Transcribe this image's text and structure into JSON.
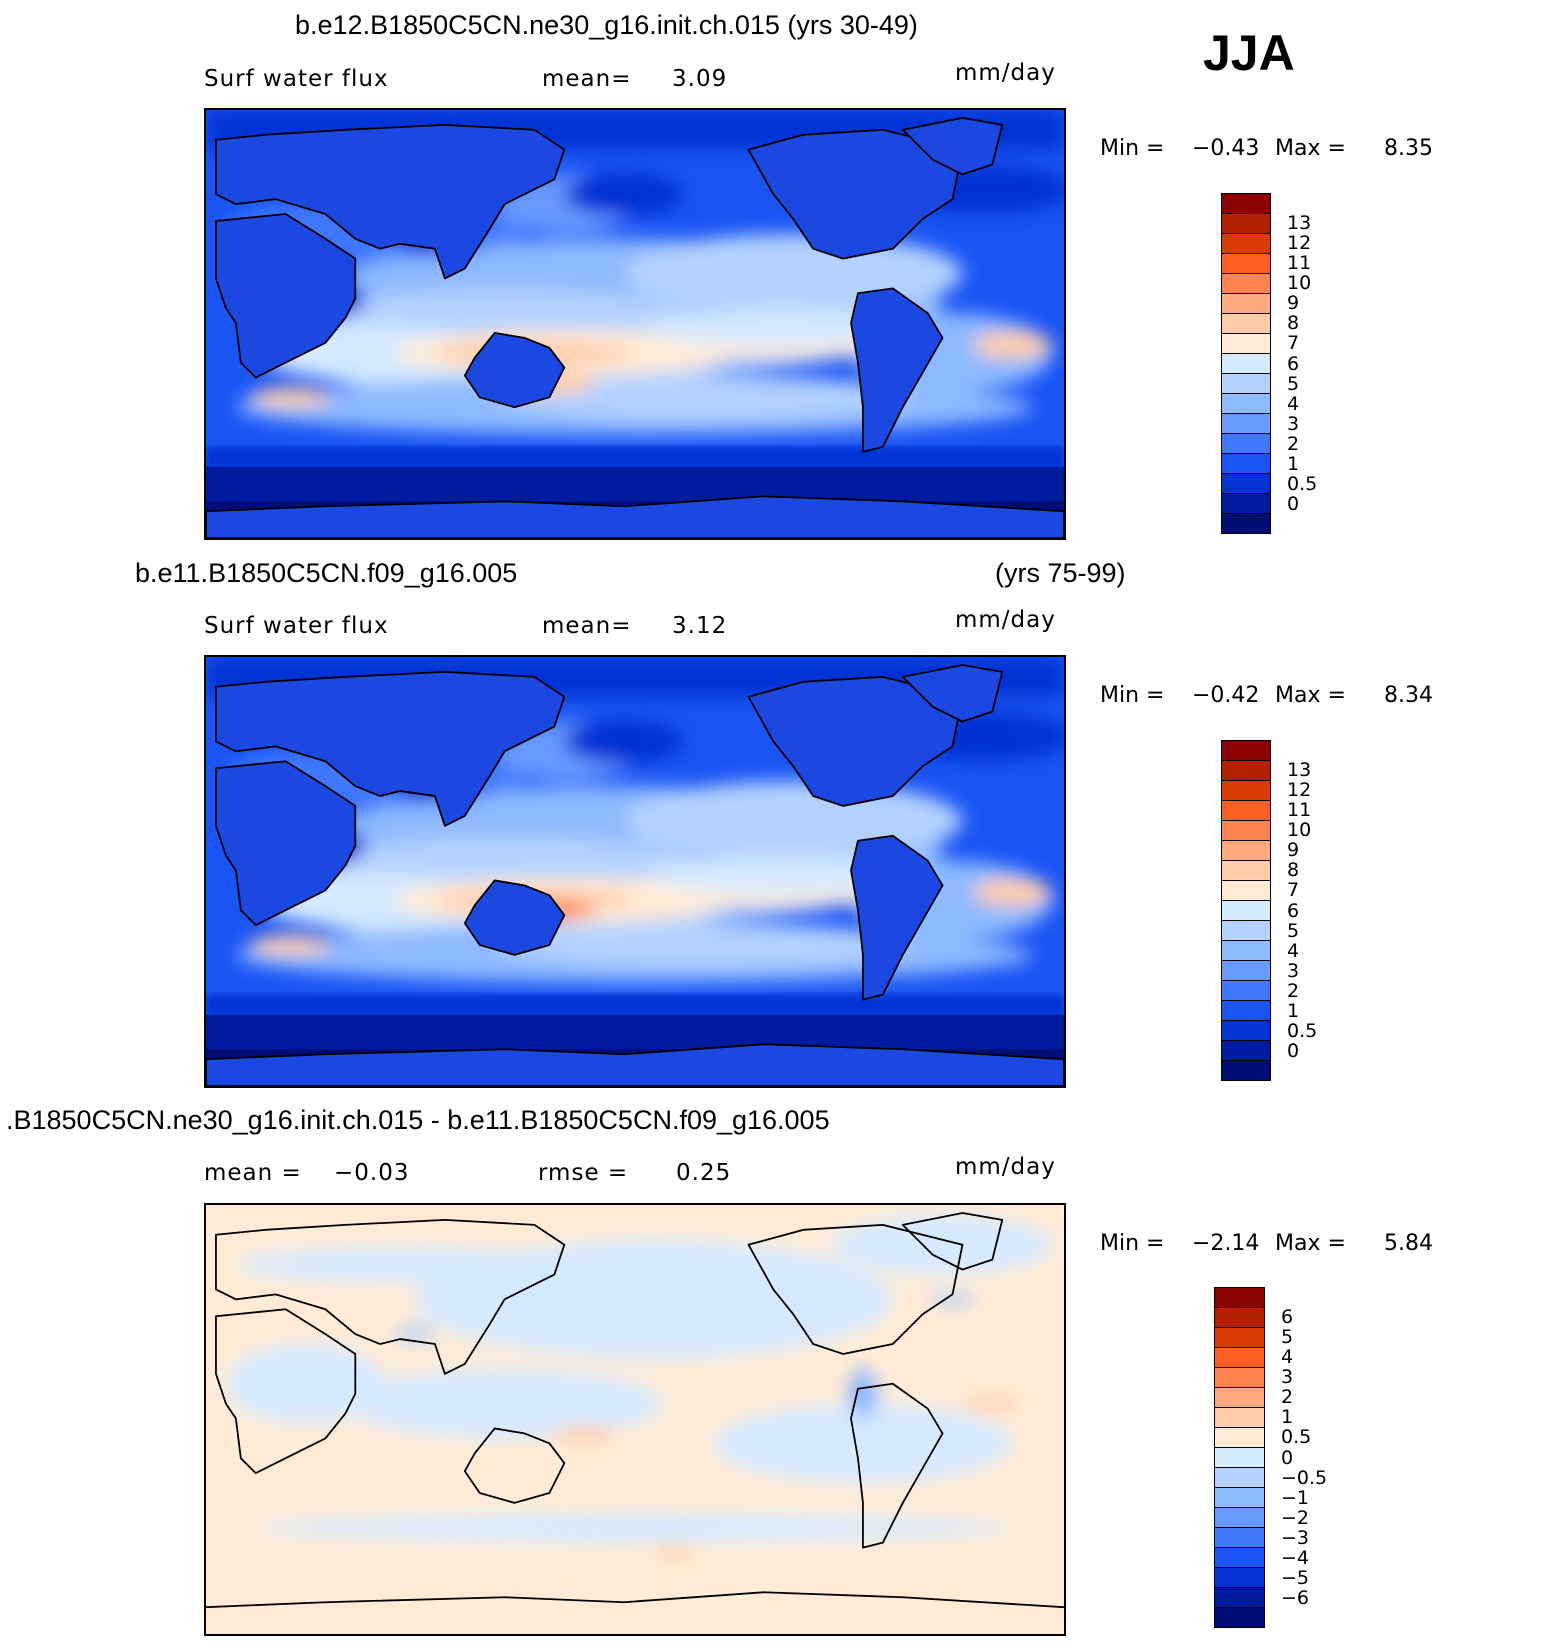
{
  "season": "JJA",
  "panels": [
    {
      "title": "b.e12.B1850C5CN.ne30_g16.init.ch.015 (yrs 30-49)",
      "title_right": "",
      "left_label": "Surf water flux",
      "mid_label": "mean=",
      "mid_value": "3.09",
      "units": "mm/day",
      "min_label": "Min =",
      "min_value": "−0.43",
      "max_label": "Max =",
      "max_value": "8.35",
      "colorbar": {
        "colors": [
          "#8b0000",
          "#b52100",
          "#d93b00",
          "#fe5f22",
          "#ff8450",
          "#ffa97f",
          "#ffccab",
          "#ffebd6",
          "#d6eaff",
          "#b3d2ff",
          "#8db9ff",
          "#6799ff",
          "#4078ff",
          "#1a55f4",
          "#0532d4",
          "#001b9d",
          "#000c78"
        ],
        "labels": [
          "13",
          "12",
          "11",
          "10",
          "9",
          "8",
          "7",
          "6",
          "5",
          "4",
          "3",
          "2",
          "1",
          "0.5",
          "0"
        ]
      },
      "chart_data": {
        "type": "heatmap",
        "field": "surface water flux",
        "units": "mm/day",
        "mean": 3.09,
        "min": -0.43,
        "max": 8.35,
        "levels": [
          0,
          0.5,
          1,
          2,
          3,
          4,
          5,
          6,
          7,
          8,
          9,
          10,
          11,
          12,
          13
        ]
      }
    },
    {
      "title": "b.e11.B1850C5CN.f09_g16.005",
      "title_right": "(yrs 75-99)",
      "left_label": "Surf water flux",
      "mid_label": "mean=",
      "mid_value": "3.12",
      "units": "mm/day",
      "min_label": "Min =",
      "min_value": "−0.42",
      "max_label": "Max =",
      "max_value": "8.34",
      "colorbar": {
        "colors": [
          "#8b0000",
          "#b52100",
          "#d93b00",
          "#fe5f22",
          "#ff8450",
          "#ffa97f",
          "#ffccab",
          "#ffebd6",
          "#d6eaff",
          "#b3d2ff",
          "#8db9ff",
          "#6799ff",
          "#4078ff",
          "#1a55f4",
          "#0532d4",
          "#001b9d",
          "#000c78"
        ],
        "labels": [
          "13",
          "12",
          "11",
          "10",
          "9",
          "8",
          "7",
          "6",
          "5",
          "4",
          "3",
          "2",
          "1",
          "0.5",
          "0"
        ]
      },
      "chart_data": {
        "type": "heatmap",
        "field": "surface water flux",
        "units": "mm/day",
        "mean": 3.12,
        "min": -0.42,
        "max": 8.34,
        "levels": [
          0,
          0.5,
          1,
          2,
          3,
          4,
          5,
          6,
          7,
          8,
          9,
          10,
          11,
          12,
          13
        ]
      }
    },
    {
      "title": ".B1850C5CN.ne30_g16.init.ch.015 - b.e11.B1850C5CN.f09_g16.005",
      "title_right": "",
      "left_label": "mean =",
      "left_value": "−0.03",
      "mid_label": "rmse =",
      "mid_value": "0.25",
      "units": "mm/day",
      "min_label": "Min =",
      "min_value": "−2.14",
      "max_label": "Max =",
      "max_value": "5.84",
      "colorbar": {
        "colors": [
          "#8b0000",
          "#b52100",
          "#d93b00",
          "#fe5f22",
          "#ff8450",
          "#ffa97f",
          "#ffccab",
          "#ffebd6",
          "#d6eaff",
          "#b3d2ff",
          "#8db9ff",
          "#6799ff",
          "#4078ff",
          "#1a55f4",
          "#0532d4",
          "#001b9d",
          "#000c78"
        ],
        "labels": [
          "6",
          "5",
          "4",
          "3",
          "2",
          "1",
          "0.5",
          "0",
          "−0.5",
          "−1",
          "−2",
          "−3",
          "−4",
          "−5",
          "−6"
        ]
      },
      "chart_data": {
        "type": "heatmap",
        "field": "surface water flux difference",
        "units": "mm/day",
        "mean": -0.03,
        "rmse": 0.25,
        "min": -2.14,
        "max": 5.84,
        "levels": [
          -6,
          -5,
          -4,
          -3,
          -2,
          -1,
          -0.5,
          0,
          0.5,
          1,
          2,
          3,
          4,
          5,
          6
        ]
      }
    }
  ]
}
